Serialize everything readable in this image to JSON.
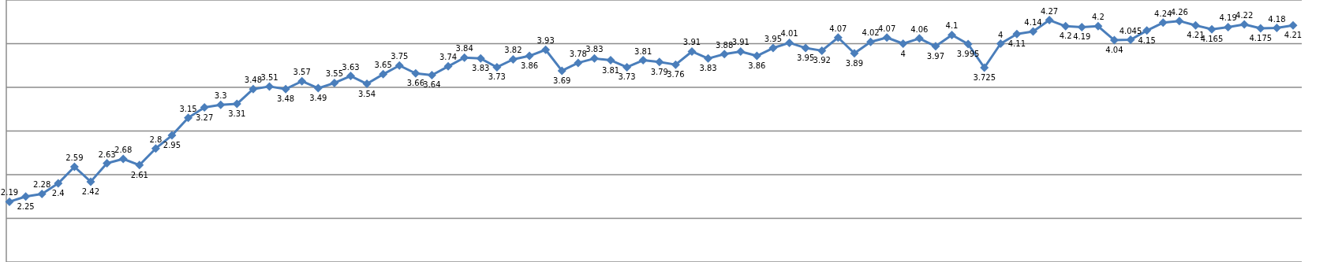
{
  "chart_data": {
    "type": "line",
    "categories": [
      null,
      null,
      null,
      null,
      null,
      null,
      null,
      null,
      null,
      null,
      null,
      null,
      null,
      null,
      null,
      null,
      null,
      null,
      null,
      null,
      null,
      null,
      null,
      null,
      null,
      null,
      null,
      null,
      null,
      null,
      null,
      null,
      null,
      null,
      null,
      null,
      null,
      null,
      null,
      null,
      null,
      null,
      null,
      null,
      null,
      null,
      null,
      null,
      null,
      null,
      null,
      null,
      null,
      null,
      null,
      null,
      null,
      null,
      null,
      null,
      null,
      null,
      null,
      null,
      null,
      null,
      null,
      null,
      null,
      null,
      null,
      null,
      null,
      null,
      null,
      null,
      null,
      null,
      null,
      null
    ],
    "series": [
      {
        "color": "#4a7ebb",
        "values": [
          2.19,
          2.25,
          2.28,
          2.4,
          2.59,
          2.42,
          2.63,
          2.68,
          2.61,
          2.8,
          2.95,
          3.15,
          3.27,
          3.3,
          3.31,
          3.48,
          3.51,
          3.48,
          3.57,
          3.49,
          3.55,
          3.63,
          3.54,
          3.65,
          3.75,
          3.66,
          3.64,
          3.74,
          3.84,
          3.83,
          3.73,
          3.82,
          3.86,
          3.93,
          3.69,
          3.78,
          3.83,
          3.81,
          3.73,
          3.81,
          3.79,
          3.76,
          3.91,
          3.83,
          3.88,
          3.91,
          3.86,
          3.95,
          4.01,
          3.95,
          3.92,
          4.07,
          3.89,
          4.02,
          4.07,
          4,
          4.06,
          3.97,
          4.1,
          3.995,
          3.725,
          4,
          4.11,
          4.14,
          4.27,
          4.2,
          4.19,
          4.2,
          4.04,
          4.045,
          4.15,
          4.24,
          4.26,
          4.21,
          4.165,
          4.19,
          4.22,
          4.175,
          4.18,
          4.21
        ]
      }
    ],
    "ylim": [
      1.5,
      4.5
    ],
    "grid": "y",
    "tick_labels": false,
    "marker": "diamond",
    "line_style": "solid",
    "data_labels": true
  }
}
